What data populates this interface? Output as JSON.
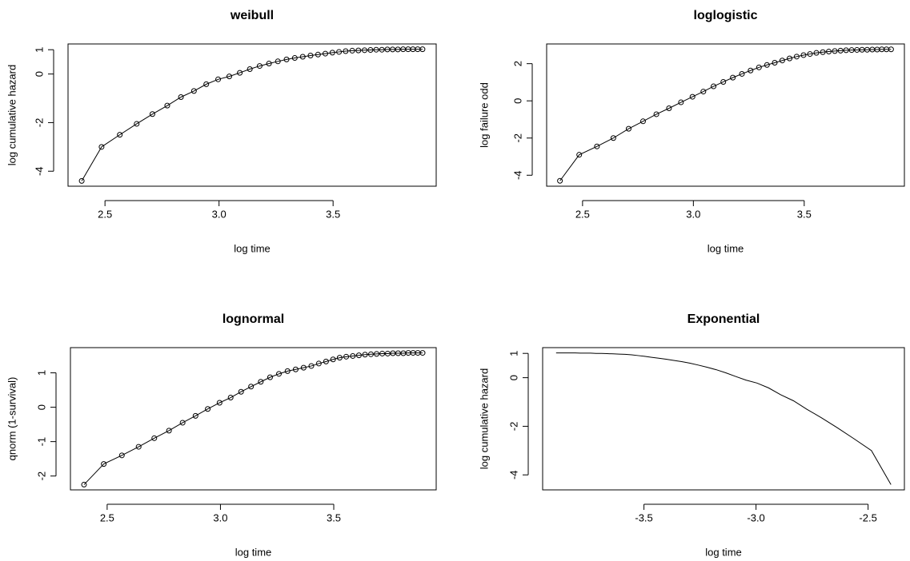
{
  "chart_data": [
    {
      "type": "line",
      "title": "weibull",
      "xlabel": "log time",
      "ylabel": "log cumulative hazard",
      "markers": true,
      "x": [
        2.398,
        2.485,
        2.565,
        2.639,
        2.708,
        2.773,
        2.833,
        2.89,
        2.944,
        2.996,
        3.045,
        3.091,
        3.135,
        3.178,
        3.219,
        3.258,
        3.296,
        3.332,
        3.367,
        3.401,
        3.434,
        3.466,
        3.497,
        3.526,
        3.555,
        3.584,
        3.611,
        3.638,
        3.664,
        3.689,
        3.714,
        3.738,
        3.761,
        3.784,
        3.807,
        3.829,
        3.85,
        3.871,
        3.892
      ],
      "values": [
        -4.4,
        -3.0,
        -2.5,
        -2.05,
        -1.65,
        -1.3,
        -0.95,
        -0.7,
        -0.42,
        -0.22,
        -0.1,
        0.05,
        0.2,
        0.33,
        0.43,
        0.52,
        0.6,
        0.66,
        0.71,
        0.76,
        0.8,
        0.84,
        0.88,
        0.91,
        0.94,
        0.96,
        0.97,
        0.98,
        0.99,
        1.0,
        1.0,
        1.01,
        1.01,
        1.01,
        1.02,
        1.02,
        1.02,
        1.02,
        1.02
      ],
      "xlim": [
        2.338,
        3.952
      ],
      "ylim": [
        -4.617,
        1.237
      ],
      "xticks": [
        2.5,
        {
          "value": 3,
          "label": "3.0"
        },
        3.5
      ],
      "yticks": [
        -4,
        -2,
        0,
        1
      ]
    },
    {
      "type": "line",
      "title": "loglogistic",
      "xlabel": "log time",
      "ylabel": "log failure odd",
      "markers": true,
      "x": [
        2.398,
        2.485,
        2.565,
        2.639,
        2.708,
        2.773,
        2.833,
        2.89,
        2.944,
        2.996,
        3.045,
        3.091,
        3.135,
        3.178,
        3.219,
        3.258,
        3.296,
        3.332,
        3.367,
        3.401,
        3.434,
        3.466,
        3.497,
        3.526,
        3.555,
        3.584,
        3.611,
        3.638,
        3.664,
        3.689,
        3.714,
        3.738,
        3.761,
        3.784,
        3.807,
        3.829,
        3.85,
        3.871,
        3.892
      ],
      "values": [
        -4.3,
        -2.9,
        -2.45,
        -2.0,
        -1.5,
        -1.1,
        -0.72,
        -0.4,
        -0.08,
        0.22,
        0.5,
        0.78,
        1.02,
        1.25,
        1.45,
        1.63,
        1.8,
        1.93,
        2.05,
        2.17,
        2.28,
        2.38,
        2.46,
        2.52,
        2.58,
        2.62,
        2.65,
        2.68,
        2.7,
        2.72,
        2.73,
        2.74,
        2.75,
        2.75,
        2.76,
        2.76,
        2.77,
        2.77,
        2.77
      ],
      "xlim": [
        2.338,
        3.952
      ],
      "ylim": [
        -4.59,
        3.06
      ],
      "xticks": [
        2.5,
        {
          "value": 3,
          "label": "3.0"
        },
        3.5
      ],
      "yticks": [
        -4,
        -2,
        0,
        2
      ]
    },
    {
      "type": "line",
      "title": "lognormal",
      "xlabel": "log time",
      "ylabel": "qnorm (1-survival)",
      "markers": true,
      "x": [
        2.398,
        2.485,
        2.565,
        2.639,
        2.708,
        2.773,
        2.833,
        2.89,
        2.944,
        2.996,
        3.045,
        3.091,
        3.135,
        3.178,
        3.219,
        3.258,
        3.296,
        3.332,
        3.367,
        3.401,
        3.434,
        3.466,
        3.497,
        3.526,
        3.555,
        3.584,
        3.611,
        3.638,
        3.664,
        3.689,
        3.714,
        3.738,
        3.761,
        3.784,
        3.807,
        3.829,
        3.85,
        3.871,
        3.892
      ],
      "values": [
        -2.25,
        -1.65,
        -1.4,
        -1.15,
        -0.9,
        -0.68,
        -0.45,
        -0.25,
        -0.05,
        0.13,
        0.28,
        0.45,
        0.6,
        0.74,
        0.87,
        0.97,
        1.05,
        1.1,
        1.15,
        1.2,
        1.27,
        1.33,
        1.39,
        1.44,
        1.47,
        1.49,
        1.51,
        1.53,
        1.54,
        1.55,
        1.56,
        1.56,
        1.57,
        1.57,
        1.57,
        1.58,
        1.58,
        1.58,
        1.58
      ],
      "xlim": [
        2.338,
        3.952
      ],
      "ylim": [
        -2.403,
        1.733
      ],
      "xticks": [
        2.5,
        {
          "value": 3,
          "label": "3.0"
        },
        3.5
      ],
      "yticks": [
        -2,
        -1,
        0,
        1
      ]
    },
    {
      "type": "line",
      "title": "Exponential",
      "xlabel": "log time",
      "ylabel": "log cumulative hazard",
      "markers": false,
      "x": [
        -2.398,
        -2.485,
        -2.565,
        -2.639,
        -2.708,
        -2.773,
        -2.833,
        -2.89,
        -2.944,
        -2.996,
        -3.045,
        -3.091,
        -3.135,
        -3.178,
        -3.219,
        -3.258,
        -3.296,
        -3.332,
        -3.367,
        -3.401,
        -3.434,
        -3.466,
        -3.497,
        -3.526,
        -3.555,
        -3.584,
        -3.611,
        -3.638,
        -3.664,
        -3.689,
        -3.714,
        -3.738,
        -3.761,
        -3.784,
        -3.807,
        -3.829,
        -3.85,
        -3.871,
        -3.892
      ],
      "values": [
        -4.4,
        -3.0,
        -2.5,
        -2.05,
        -1.65,
        -1.3,
        -0.95,
        -0.7,
        -0.42,
        -0.22,
        -0.1,
        0.05,
        0.2,
        0.33,
        0.43,
        0.52,
        0.6,
        0.66,
        0.71,
        0.76,
        0.8,
        0.84,
        0.88,
        0.91,
        0.94,
        0.96,
        0.97,
        0.98,
        0.99,
        1.0,
        1.0,
        1.01,
        1.01,
        1.01,
        1.02,
        1.02,
        1.02,
        1.02,
        1.02
      ],
      "xlim": [
        -3.952,
        -2.338
      ],
      "ylim": [
        -4.617,
        1.237
      ],
      "xticks": [
        -3.5,
        {
          "value": -3,
          "label": "-3.0"
        },
        -2.5
      ],
      "yticks": [
        -4,
        -2,
        0,
        1
      ]
    }
  ]
}
